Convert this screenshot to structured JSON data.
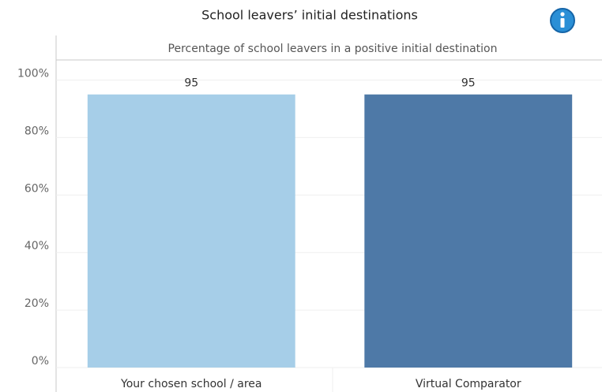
{
  "chart_data": {
    "type": "bar",
    "title": "School leavers’ initial destinations",
    "subtitle": "Percentage of school leavers in a positive initial destination",
    "categories": [
      "Your chosen school / area",
      "Virtual Comparator"
    ],
    "values": [
      95,
      95
    ],
    "colors": [
      "#a6cee8",
      "#4e79a7"
    ],
    "ylim": [
      0,
      107
    ],
    "yticks": [
      {
        "value": 0,
        "label": "0%"
      },
      {
        "value": 20,
        "label": "20%"
      },
      {
        "value": 40,
        "label": "40%"
      },
      {
        "value": 60,
        "label": "60%"
      },
      {
        "value": 80,
        "label": "80%"
      },
      {
        "value": 100,
        "label": "100%"
      }
    ],
    "grid": true
  }
}
